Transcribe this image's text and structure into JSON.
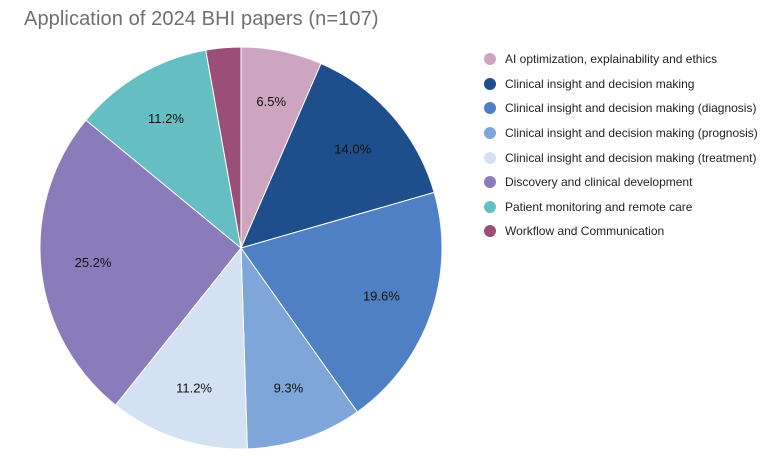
{
  "chart_data": {
    "type": "pie",
    "title": "Application of 2024 BHI papers (n=107)",
    "legend_position": "right",
    "slices": [
      {
        "name": "AI optimization, explainability and ethics",
        "value": 6.5,
        "label": "6.5%",
        "color": "#cda5c0"
      },
      {
        "name": "Clinical insight and decision making",
        "value": 14.0,
        "label": "14.0%",
        "color": "#1f4e8c"
      },
      {
        "name": "Clinical insight and decision making (diagnosis)",
        "value": 19.6,
        "label": "19.6%",
        "color": "#4e80c3"
      },
      {
        "name": "Clinical insight and decision making (prognosis)",
        "value": 9.3,
        "label": "9.3%",
        "color": "#7ea6d8"
      },
      {
        "name": "Clinical insight and decision making (treatment)",
        "value": 11.2,
        "label": "11.2%",
        "color": "#d4e1f2"
      },
      {
        "name": "Discovery and clinical development",
        "value": 25.2,
        "label": "25.2%",
        "color": "#8a7bba"
      },
      {
        "name": "Patient monitoring and remote care",
        "value": 11.2,
        "label": "11.2%",
        "color": "#65bfc2"
      },
      {
        "name": "Workflow and Communication",
        "value": 2.8,
        "label": "",
        "color": "#9b4f76"
      }
    ]
  }
}
